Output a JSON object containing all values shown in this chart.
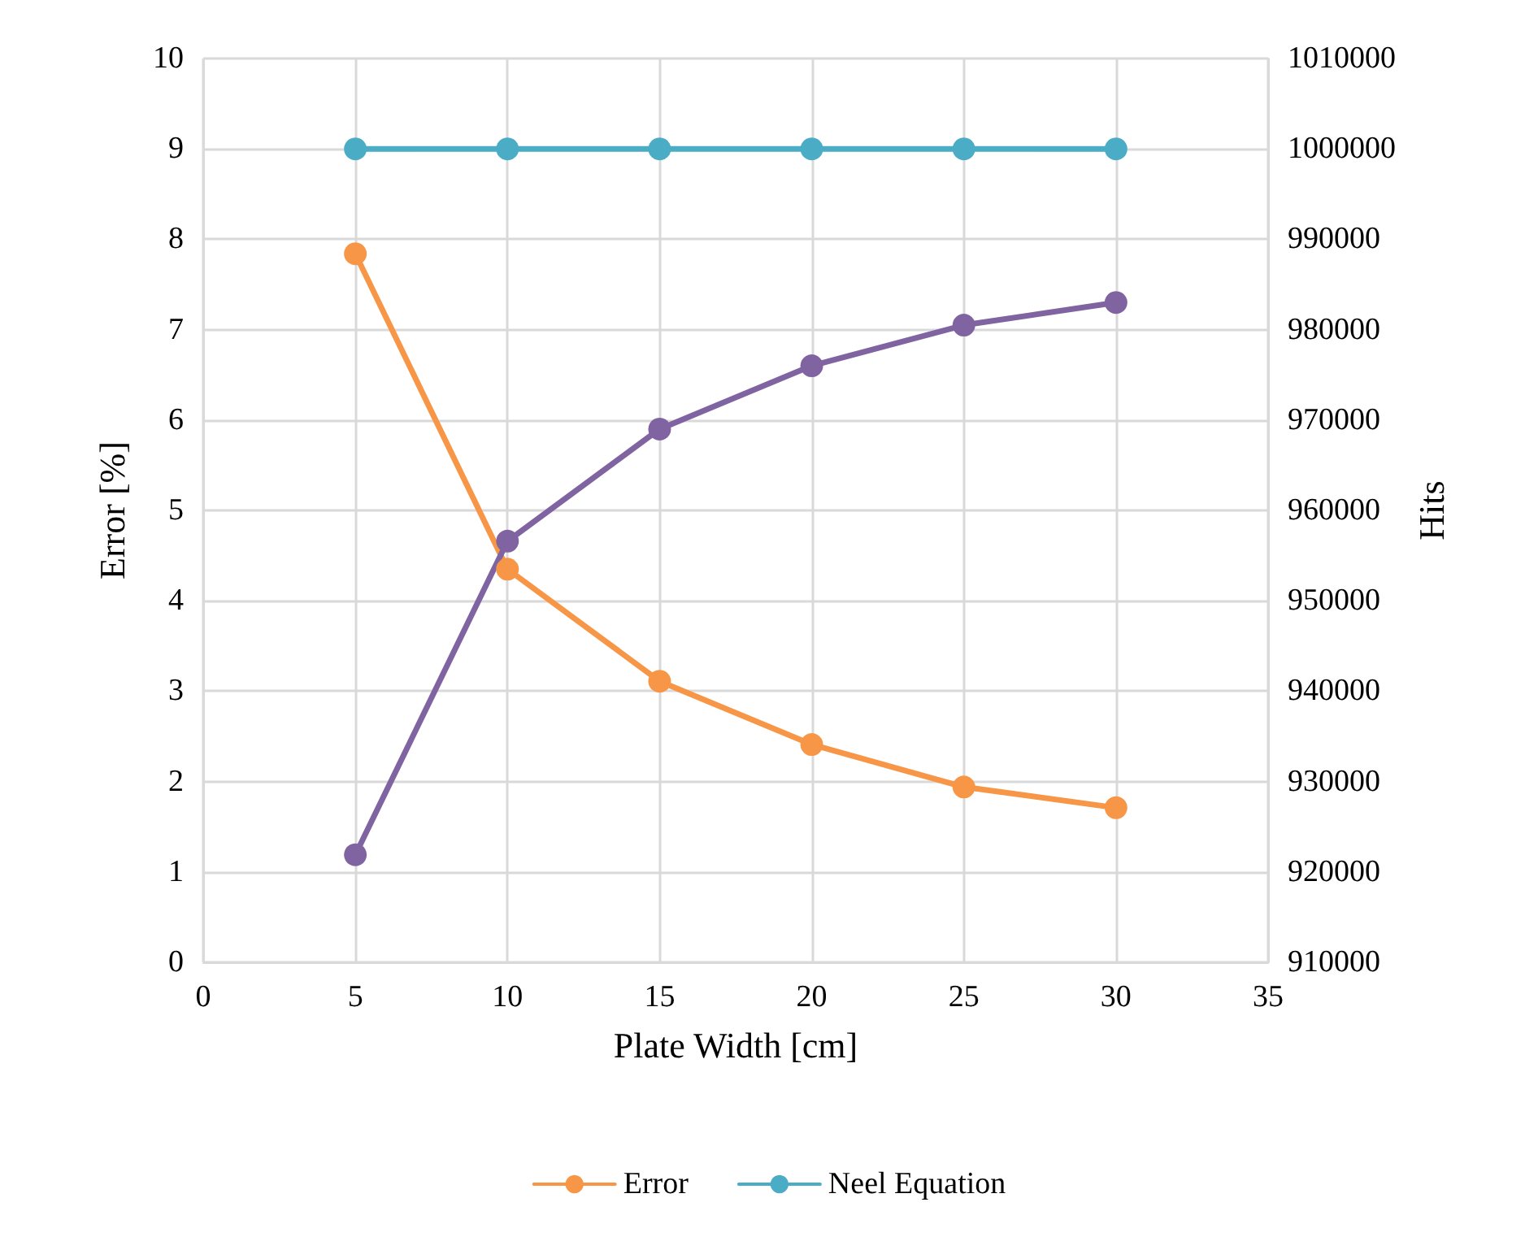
{
  "chart_data": {
    "type": "line",
    "xlabel": "Plate Width [cm]",
    "ylabel": "Error [%]",
    "y2label": "Hits",
    "x": [
      5,
      10,
      15,
      20,
      25,
      30
    ],
    "xlim": [
      0,
      35
    ],
    "xticks": [
      0,
      5,
      10,
      15,
      20,
      25,
      30,
      35
    ],
    "ylim": [
      0,
      10
    ],
    "yticks": [
      0,
      1,
      2,
      3,
      4,
      5,
      6,
      7,
      8,
      9,
      10
    ],
    "y2lim": [
      910000,
      1010000
    ],
    "y2ticks": [
      910000,
      920000,
      930000,
      940000,
      950000,
      960000,
      970000,
      980000,
      990000,
      1000000,
      1010000
    ],
    "series": [
      {
        "name": "Error",
        "color": "#f79646",
        "values": [
          7.84,
          4.35,
          3.11,
          2.41,
          1.94,
          1.71
        ]
      },
      {
        "name": "Neel Equation",
        "color": "#4bacc6",
        "axis": "y2",
        "values": [
          1000000,
          1000000,
          1000000,
          1000000,
          1000000,
          1000000
        ]
      },
      {
        "color": "#8064a2",
        "axis": "y2",
        "values": [
          921900,
          956600,
          969000,
          976000,
          980500,
          983000
        ]
      }
    ],
    "grid": true,
    "legend": "bottom",
    "marker": "circle",
    "line_style": "solid"
  }
}
